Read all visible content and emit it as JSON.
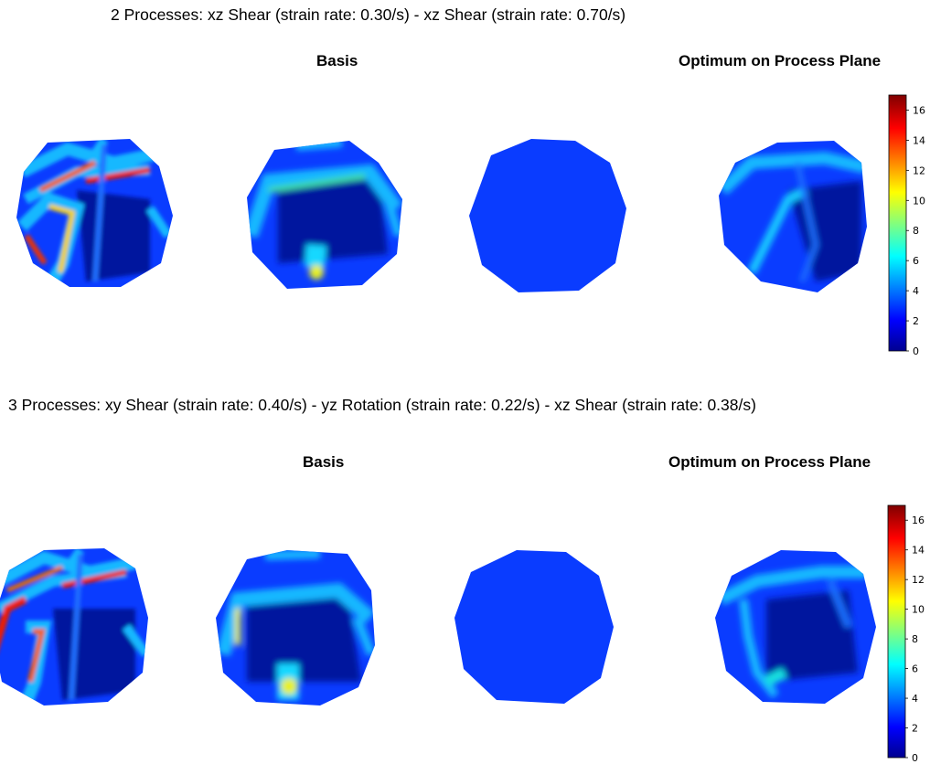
{
  "rows": [
    {
      "title": "2 Processes: xz Shear (strain rate: 0.30/s) - xz Shear (strain rate: 0.70/s)",
      "basis_label": "Basis",
      "optimum_label": "Optimum on Process Plane"
    },
    {
      "title": "3 Processes: xy Shear (strain rate: 0.40/s) - yz Rotation (strain rate: 0.22/s) - xz Shear (strain rate: 0.38/s)",
      "basis_label": "Basis",
      "optimum_label": "Optimum on Process Plane"
    }
  ],
  "colorbar": {
    "ticks": [
      "16",
      "14",
      "12",
      "10",
      "8",
      "6",
      "4",
      "2",
      "0"
    ],
    "min": 0,
    "max": 17,
    "colormap": "jet"
  },
  "colors": {
    "base_blue": "#0a3cff",
    "dark_blue": "#00109a",
    "cyan": "#18b8ff",
    "yellow": "#e8f020",
    "red": "#ee1a00"
  }
}
